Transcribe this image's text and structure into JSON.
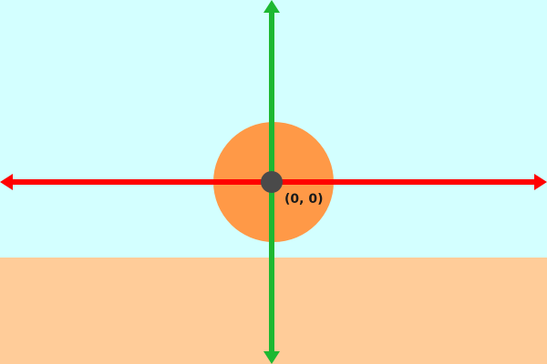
{
  "scene": {
    "origin_label": "(0, 0)"
  },
  "colors": {
    "sky": "#d3ffff",
    "ground": "#ffcc99",
    "circle": "#ff9947",
    "x_axis": "#ff0000",
    "y_axis": "#1db831",
    "origin_point": "#4a4a4a",
    "label_text": "#1a1a1a"
  },
  "icons": {
    "x_axis_ends": "double-arrow-horizontal",
    "y_axis_ends": "double-arrow-vertical"
  }
}
